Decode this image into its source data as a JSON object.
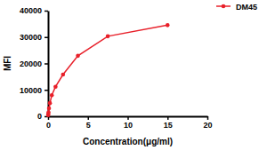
{
  "chart_data": {
    "type": "line",
    "x_label": "Concentration(μg/ml)",
    "y_label": "MFI",
    "series": [
      {
        "name": "DM45",
        "color": "#e8202a",
        "marker": "circle",
        "line_style": "solid",
        "x": [
          0.015,
          0.029,
          0.059,
          0.117,
          0.234,
          0.469,
          0.938,
          1.875,
          3.75,
          7.5,
          15
        ],
        "values": [
          400,
          800,
          1500,
          3000,
          5000,
          8000,
          11200,
          15800,
          22900,
          30300,
          34500
        ]
      }
    ],
    "xlim": [
      0,
      20
    ],
    "xticks": [
      0,
      5,
      10,
      15,
      20
    ],
    "ylim": [
      0,
      40000
    ],
    "yticks": [
      0,
      10000,
      20000,
      30000,
      40000
    ],
    "grid": false,
    "legend": "top-right"
  }
}
